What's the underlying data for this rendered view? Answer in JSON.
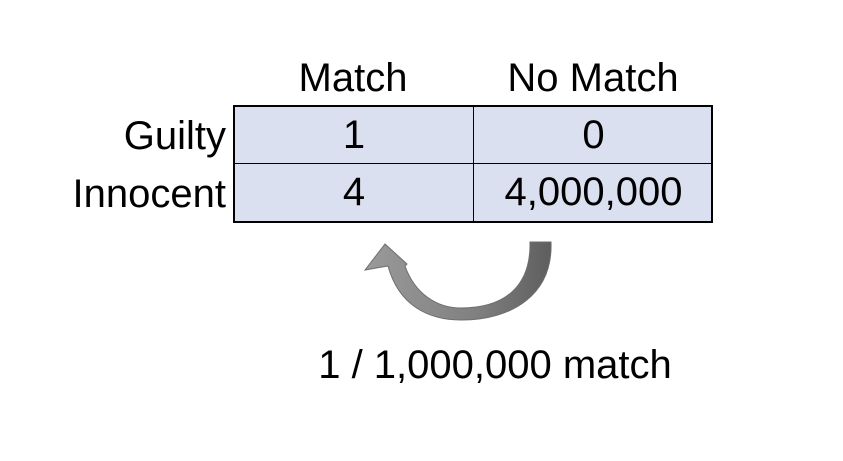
{
  "table": {
    "column_headers": [
      "Match",
      "No Match"
    ],
    "rows": [
      {
        "label": "Guilty",
        "values": [
          "1",
          "0"
        ]
      },
      {
        "label": "Innocent",
        "values": [
          "4",
          "4,000,000"
        ]
      }
    ]
  },
  "caption": "1 / 1,000,000 match",
  "colors": {
    "cell_fill": "#dae0f0",
    "arrow_fill": "#808080"
  }
}
